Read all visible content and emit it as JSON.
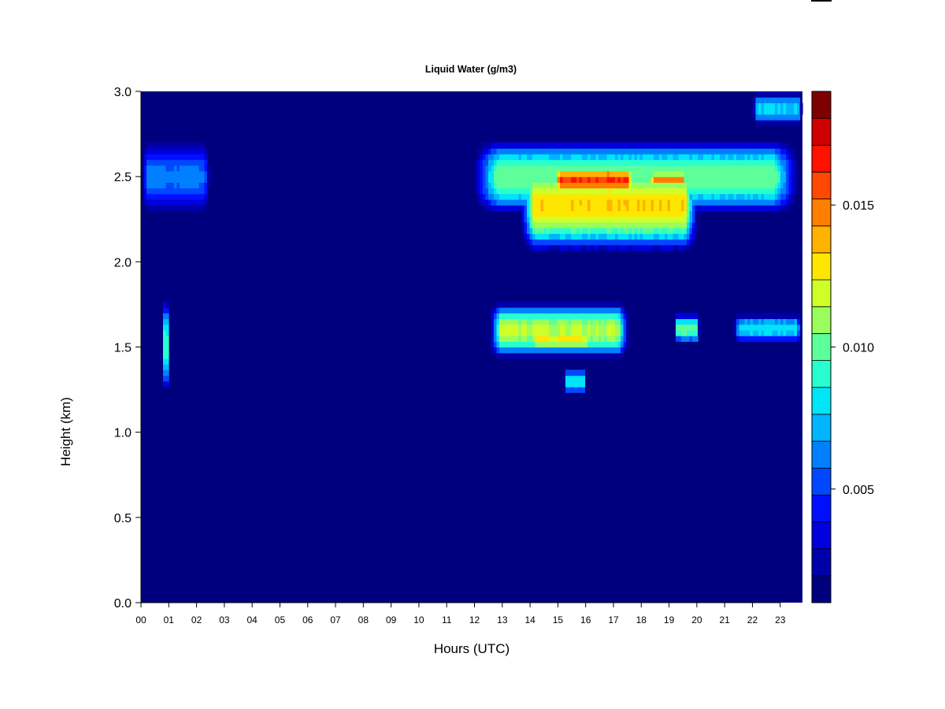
{
  "chart_data": {
    "type": "heatmap",
    "title": "Liquid Water (g/m3)",
    "xlabel": "Hours (UTC)",
    "ylabel": "Height (km)",
    "xlim": [
      0,
      23.8
    ],
    "ylim": [
      0,
      3.0
    ],
    "x_ticks": [
      "00",
      "01",
      "02",
      "03",
      "04",
      "05",
      "06",
      "07",
      "08",
      "09",
      "10",
      "11",
      "12",
      "13",
      "14",
      "15",
      "16",
      "17",
      "18",
      "19",
      "20",
      "21",
      "22",
      "23"
    ],
    "y_ticks": [
      "0.0",
      "0.5",
      "1.0",
      "1.5",
      "2.0",
      "2.5",
      "3.0"
    ],
    "background_value": 0.0005,
    "colorbar": {
      "range": [
        0.001,
        0.019
      ],
      "ticks": [
        "0.005",
        "0.010",
        "0.015"
      ],
      "tick_values": [
        0.005,
        0.01,
        0.015
      ],
      "colors": [
        "#00007f",
        "#0000a8",
        "#0000dc",
        "#0010ff",
        "#0048ff",
        "#0080ff",
        "#00b4ff",
        "#00e4f8",
        "#28ffce",
        "#5cff9a",
        "#9aff5c",
        "#ceff28",
        "#ffe600",
        "#ffb200",
        "#ff7e00",
        "#ff4800",
        "#ff1200",
        "#d00000",
        "#7f0000"
      ]
    },
    "features": [
      {
        "x0": 0.0,
        "x1": 2.5,
        "y0": 2.27,
        "y1": 2.73,
        "peak": 0.0062
      },
      {
        "x0": 11.8,
        "x1": 23.8,
        "y0": 2.27,
        "y1": 2.73,
        "peak": 0.0105
      },
      {
        "x0": 13.6,
        "x1": 20.1,
        "y0": 2.05,
        "y1": 2.62,
        "peak": 0.0135
      },
      {
        "x0": 14.8,
        "x1": 17.8,
        "y0": 2.38,
        "y1": 2.58,
        "peak": 0.0165
      },
      {
        "x0": 18.3,
        "x1": 19.6,
        "y0": 2.42,
        "y1": 2.55,
        "peak": 0.015
      },
      {
        "x0": 12.5,
        "x1": 17.6,
        "y0": 1.43,
        "y1": 1.77,
        "peak": 0.0118
      },
      {
        "x0": 14.0,
        "x1": 16.2,
        "y0": 1.47,
        "y1": 1.62,
        "peak": 0.0128
      },
      {
        "x0": 19.2,
        "x1": 20.1,
        "y0": 1.52,
        "y1": 1.7,
        "peak": 0.0105
      },
      {
        "x0": 21.3,
        "x1": 23.8,
        "y0": 1.52,
        "y1": 1.7,
        "peak": 0.0085
      },
      {
        "x0": 15.2,
        "x1": 16.0,
        "y0": 1.22,
        "y1": 1.38,
        "peak": 0.0085
      },
      {
        "x0": 0.8,
        "x1": 1.0,
        "y0": 1.22,
        "y1": 1.8,
        "peak": 0.0095
      },
      {
        "x0": 22.0,
        "x1": 23.8,
        "y0": 2.8,
        "y1": 3.0,
        "peak": 0.008
      }
    ]
  }
}
